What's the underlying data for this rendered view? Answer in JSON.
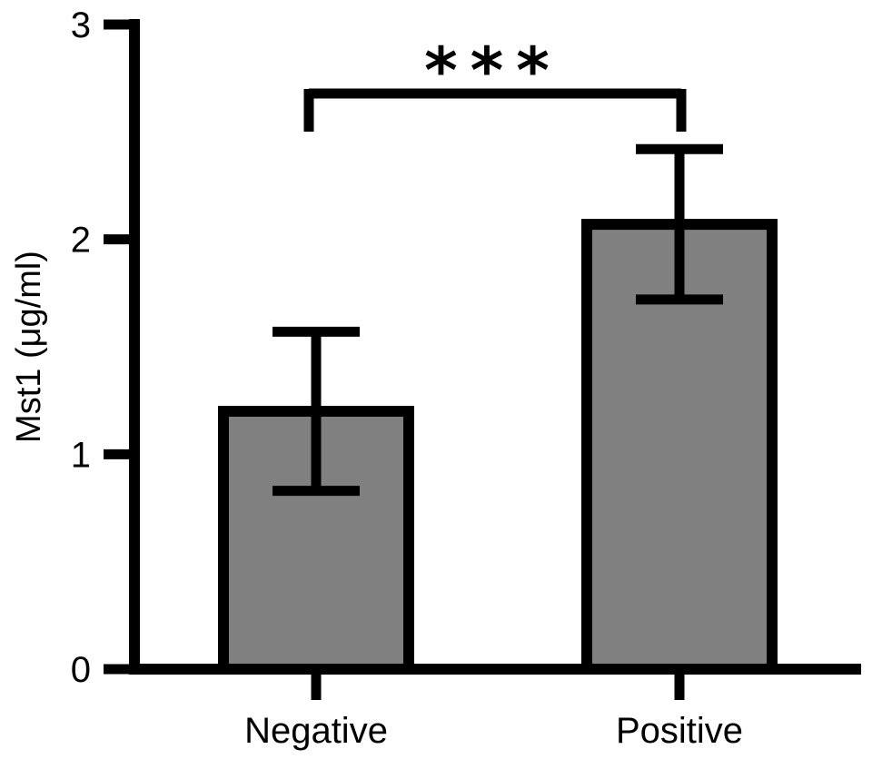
{
  "chart_data": {
    "type": "bar",
    "title": "",
    "xlabel": "",
    "ylabel": "Mst1 (μg/ml)",
    "categories": [
      "Negative",
      "Positive"
    ],
    "values": [
      1.2,
      2.07
    ],
    "error": [
      0.37,
      0.35
    ],
    "ylim": [
      0,
      3
    ],
    "yticks": [
      "0",
      "1",
      "2",
      "3"
    ],
    "significance": {
      "between": [
        "Negative",
        "Positive"
      ],
      "label": "***"
    },
    "grid": false,
    "colors": {
      "bar_fill": "#808080",
      "stroke": "#000000",
      "background": "#ffffff"
    }
  }
}
